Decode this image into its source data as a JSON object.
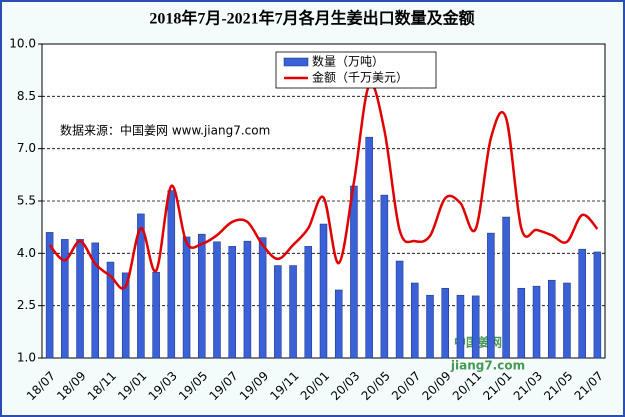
{
  "chart_data": {
    "type": "bar-line",
    "title": "2018年7月-2021年7月各月生姜出口数量及金额",
    "annotation": "数据来源：中国姜网 www.jiang7.com",
    "watermark": "中国姜网",
    "watermark_url": "jiang7.com",
    "categories": [
      "18/07",
      null,
      "18/09",
      null,
      "18/11",
      null,
      "19/01",
      null,
      "19/03",
      null,
      "19/05",
      null,
      "19/07",
      null,
      "19/09",
      null,
      "19/11",
      null,
      "20/01",
      null,
      "20/03",
      null,
      "20/05",
      null,
      "20/07",
      null,
      "20/09",
      null,
      "20/11",
      null,
      "21/01",
      null,
      "21/03",
      null,
      "21/05",
      null,
      "21/07"
    ],
    "series": [
      {
        "name": "数量（万吨）",
        "type": "bar",
        "color": "#3a62d6",
        "values": [
          4.6,
          4.4,
          4.4,
          4.3,
          3.75,
          3.44,
          5.13,
          3.46,
          5.8,
          4.47,
          4.55,
          4.33,
          4.2,
          4.35,
          4.45,
          3.65,
          3.65,
          4.2,
          4.84,
          2.95,
          5.93,
          7.33,
          5.67,
          3.78,
          3.15,
          2.8,
          3.0,
          2.8,
          2.78,
          4.58,
          5.04,
          3.0,
          3.06,
          3.23,
          3.15,
          4.12,
          4.04
        ]
      },
      {
        "name": "金额（千万美元）",
        "type": "line",
        "color": "#e00000",
        "values": [
          4.24,
          3.8,
          4.35,
          3.7,
          3.35,
          3.06,
          4.72,
          3.5,
          5.93,
          4.3,
          4.27,
          4.52,
          4.9,
          4.9,
          4.24,
          3.84,
          4.24,
          4.72,
          5.6,
          3.72,
          6.04,
          8.82,
          7.53,
          4.67,
          4.35,
          4.5,
          5.58,
          5.44,
          4.7,
          7.3,
          7.88,
          4.72,
          4.67,
          4.52,
          4.33,
          5.1,
          4.7
        ]
      }
    ],
    "ylim": [
      1,
      10
    ],
    "yticks": [
      {
        "value": 1,
        "label": "1.0"
      },
      {
        "value": 2.5,
        "label": "2.5"
      },
      {
        "value": 4,
        "label": "4.0"
      },
      {
        "value": 5.5,
        "label": "5.5"
      },
      {
        "value": 7,
        "label": "7.0"
      },
      {
        "value": 8.5,
        "label": "8.5"
      },
      {
        "value": 10,
        "label": "10.0"
      }
    ],
    "grid": true,
    "legend": "top"
  }
}
